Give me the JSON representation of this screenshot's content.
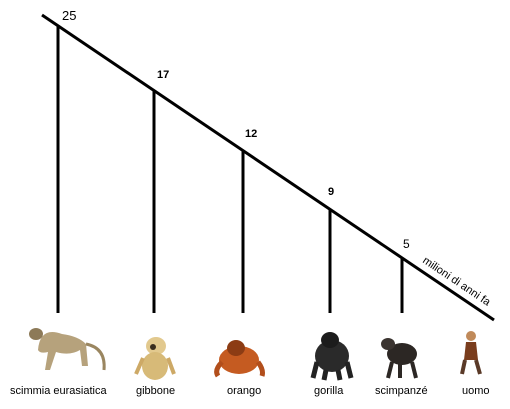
{
  "diagram": {
    "axis_label": "milioni di anni fa",
    "branch_points": [
      {
        "value": "25",
        "species": "scimmia eurasiatica"
      },
      {
        "value": "17",
        "species": "gibbone"
      },
      {
        "value": "12",
        "species": "orango"
      },
      {
        "value": "9",
        "species": "gorilla"
      },
      {
        "value": "5",
        "species": "scimpanzé"
      }
    ],
    "terminal_species": "uomo"
  }
}
